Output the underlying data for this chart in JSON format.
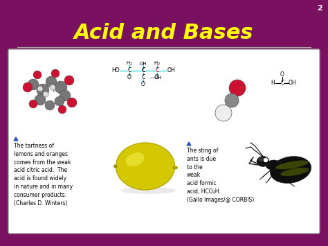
{
  "bg_color": "#7A1060",
  "slide_number": "2",
  "title": "Acid and Bases",
  "title_color": "#FFFF00",
  "title_fontsize": 22,
  "content_box_color": "#FFFFFF",
  "left_caption": "The tartness of\nlemons and oranges\ncomes from the weak\nacid citric acid.  The\nacid is found widely\nin nature and in many\nconsumer products.\n(Charles D. Winters)",
  "right_caption": "The sting of\nants is due\nto the\nweak\nacid formic\nacid, HCO₂H.\n(Gallo Images/@ CORBIS)",
  "separator_color": "#AAAAAA",
  "line_color": "#00CCCC",
  "mol_gray": "#888888",
  "mol_red": "#CC2244",
  "mol_white": "#EEEEEE"
}
